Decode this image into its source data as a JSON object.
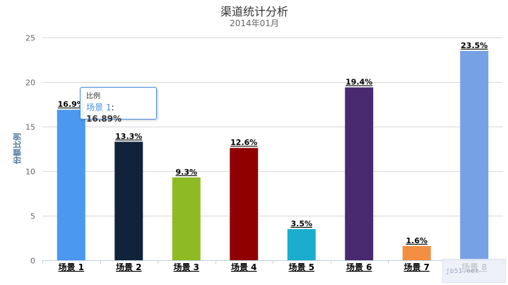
{
  "chart_data": {
    "type": "bar",
    "title": "渠道统计分析",
    "subtitle": "2014年01月",
    "ylabel": "份额比例",
    "xlabel": "",
    "ylim": [
      0,
      25
    ],
    "yticks": [
      "0",
      "5",
      "10",
      "15",
      "20",
      "25"
    ],
    "grid": true,
    "categories": [
      "场景 1",
      "场景 2",
      "场景 3",
      "场景 4",
      "场景 5",
      "场景 6",
      "场景 7",
      "场景 8"
    ],
    "values": [
      16.89,
      13.3,
      9.3,
      12.6,
      3.5,
      19.4,
      1.6,
      23.5
    ],
    "data_labels": [
      "16.9%",
      "13.3%",
      "9.3%",
      "12.6%",
      "3.5%",
      "19.4%",
      "1.6%",
      "23.5%"
    ],
    "colors": [
      "#4a98f0",
      "#10233b",
      "#8ebb24",
      "#910000",
      "#1aadce",
      "#492970",
      "#f28f43",
      "#77a1e5"
    ]
  },
  "tooltip": {
    "header": "比例",
    "series": "场景 1",
    "value": "16.89%"
  }
}
